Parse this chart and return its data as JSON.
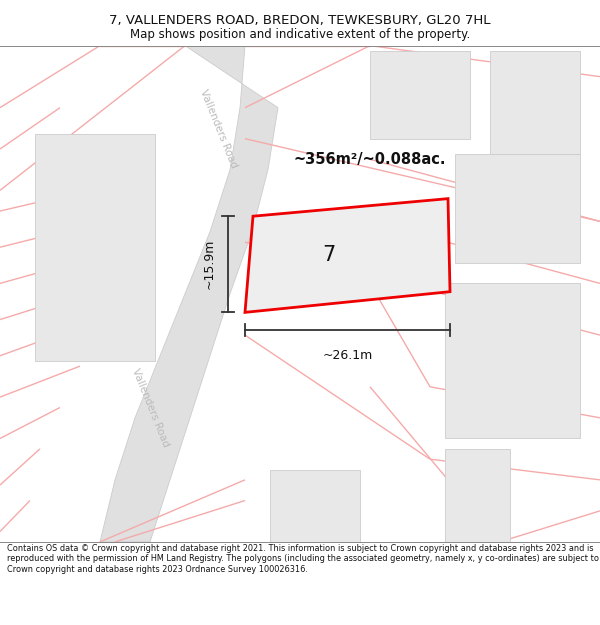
{
  "title_line1": "7, VALLENDERS ROAD, BREDON, TEWKESBURY, GL20 7HL",
  "title_line2": "Map shows position and indicative extent of the property.",
  "footer_text": "Contains OS data © Crown copyright and database right 2021. This information is subject to Crown copyright and database rights 2023 and is reproduced with the permission of HM Land Registry. The polygons (including the associated geometry, namely x, y co-ordinates) are subject to Crown copyright and database rights 2023 Ordnance Survey 100026316.",
  "bg_color": "#ffffff",
  "road_color": "#e0e0e0",
  "road_edge_color": "#cccccc",
  "building_fill": "#e8e8e8",
  "building_edge": "#cccccc",
  "property_fill": "#eeeeee",
  "property_edge": "#ee0000",
  "property_lw": 2.0,
  "pink": "#f5aaaa",
  "pink_lw": 1.0,
  "dim_color": "#333333",
  "area_text": "~356m²/~0.088ac.",
  "width_text": "~26.1m",
  "height_text": "~15.9m",
  "number_text": "7",
  "road_label": "Vallenders Road"
}
